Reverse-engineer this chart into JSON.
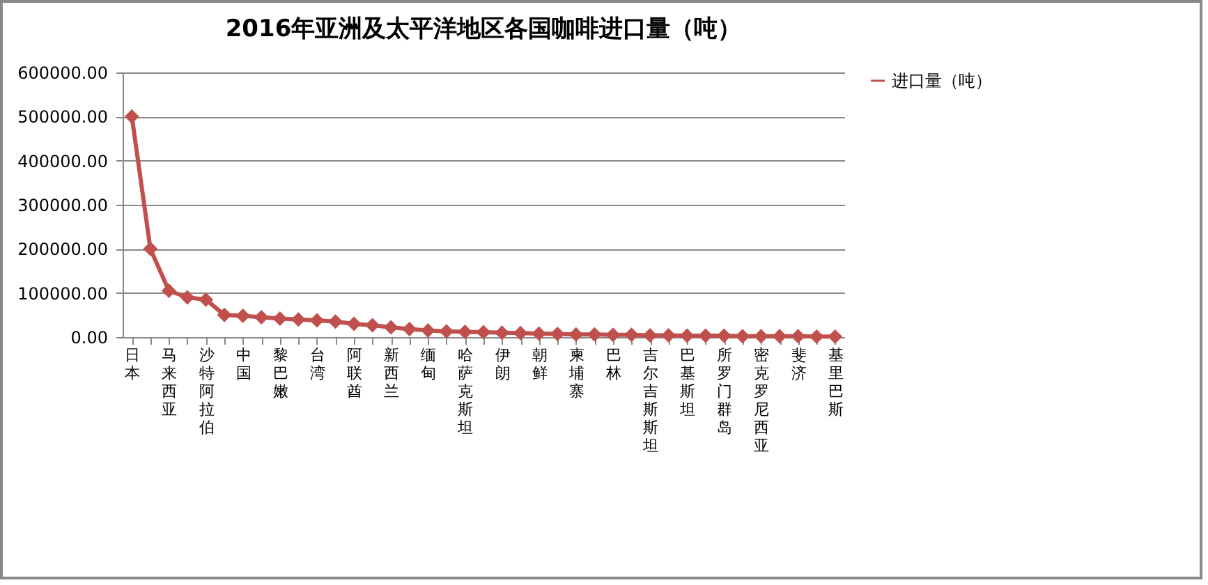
{
  "chart_data": {
    "type": "line",
    "title": "2016年亚洲及太平洋地区各国咖啡进口量（吨）",
    "categories": [
      "日本",
      null,
      "马来西亚",
      null,
      "沙特阿拉伯",
      null,
      "中国",
      null,
      "黎巴嫩",
      null,
      "台湾",
      null,
      "阿联酋",
      null,
      "新西兰",
      null,
      "缅甸",
      null,
      "哈萨克斯坦",
      null,
      "伊朗",
      null,
      "朝鲜",
      null,
      "柬埔寨",
      null,
      "巴林",
      null,
      "吉尔吉斯斯坦",
      null,
      "巴基斯坦",
      null,
      "所罗门群岛",
      null,
      "密克罗尼西亚",
      null,
      "斐济",
      null,
      "基里巴斯"
    ],
    "series": [
      {
        "name": "进口量（吨）",
        "color": "#c0504d",
        "values": [
          500000,
          200000,
          105000,
          90000,
          85000,
          50000,
          48000,
          45000,
          42000,
          40000,
          38000,
          35000,
          30000,
          27000,
          22000,
          18000,
          15000,
          13000,
          12000,
          11000,
          10000,
          9000,
          8000,
          7000,
          6000,
          6000,
          5000,
          5000,
          4000,
          4000,
          3000,
          3000,
          3000,
          2000,
          2000,
          2000,
          2000,
          1000,
          1000
        ]
      }
    ],
    "ylim": [
      0,
      600000
    ],
    "yticks": [
      {
        "value": 0,
        "label": "0.00"
      },
      {
        "value": 100000,
        "label": "100000.00"
      },
      {
        "value": 200000,
        "label": "200000.00"
      },
      {
        "value": 300000,
        "label": "300000.00"
      },
      {
        "value": 400000,
        "label": "400000.00"
      },
      {
        "value": 500000,
        "label": "500000.00"
      },
      {
        "value": 600000,
        "label": "600000.00"
      }
    ],
    "grid": "y",
    "legend": "right",
    "marker": "diamond",
    "line_style": "solid"
  }
}
